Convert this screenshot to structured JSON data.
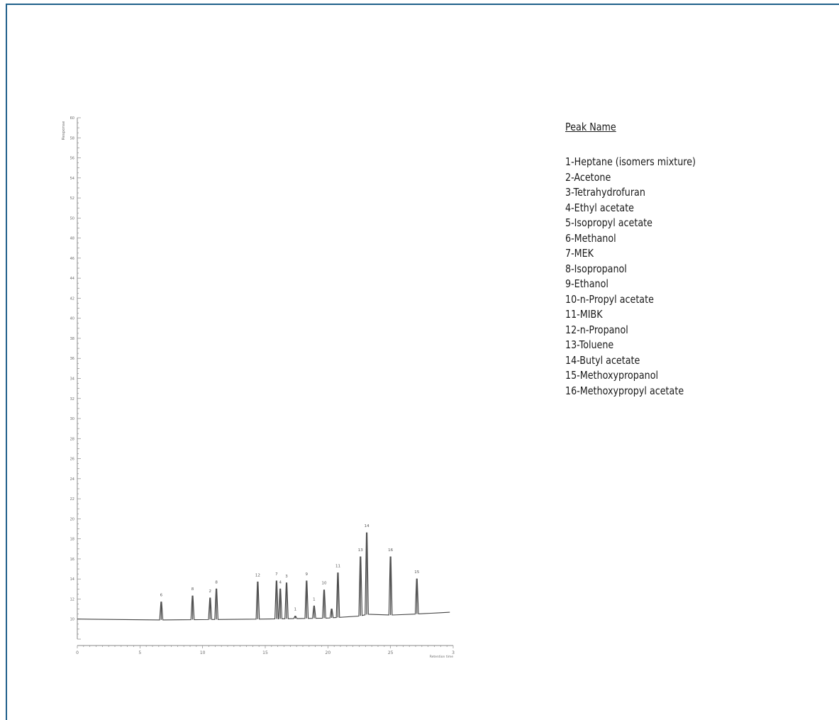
{
  "legend": {
    "title": "Peak Name",
    "items": [
      "1-Heptane (isomers mixture)",
      "2-Acetone",
      "3-Tetrahydrofuran",
      "4-Ethyl acetate",
      "5-Isopropyl acetate",
      "6-Methanol",
      "7-MEK",
      "8-Isopropanol",
      "9-Ethanol",
      "10-n-Propyl acetate",
      "11-MIBK",
      "12-n-Propanol",
      "13-Toluene",
      "14-Butyl acetate",
      "15-Methoxypropanol",
      "16-Methoxypropyl acetate"
    ]
  },
  "chart_data": {
    "type": "line",
    "title": "",
    "xlabel": "Retention time",
    "ylabel": "Response",
    "xlim": [
      0,
      30
    ],
    "ylim": [
      8,
      60
    ],
    "x_ticks": [
      "0",
      "5",
      "10",
      "15",
      "20",
      "25",
      "3"
    ],
    "y_ticks": [
      "10",
      "12",
      "14",
      "16",
      "18",
      "20",
      "22",
      "24",
      "26",
      "28",
      "30",
      "32",
      "34",
      "36",
      "38",
      "40",
      "42",
      "44",
      "46",
      "48",
      "50",
      "52",
      "54",
      "56",
      "58",
      "60"
    ],
    "grid": false,
    "baseline": [
      [
        0,
        10
      ],
      [
        5,
        9.9
      ],
      [
        10,
        9.95
      ],
      [
        15,
        10
      ],
      [
        20,
        10.1
      ],
      [
        22.5,
        10.3
      ],
      [
        23.3,
        10.5
      ],
      [
        25,
        10.4
      ],
      [
        27,
        10.5
      ],
      [
        30,
        10.7
      ]
    ],
    "peaks": [
      {
        "label": "6",
        "rt": 6.7,
        "height": 11.7
      },
      {
        "label": "8",
        "rt": 9.2,
        "height": 12.3
      },
      {
        "label": "2",
        "rt": 10.6,
        "height": 12.1
      },
      {
        "label": "8",
        "rt": 11.1,
        "height": 13.0
      },
      {
        "label": "12",
        "rt": 14.4,
        "height": 13.7
      },
      {
        "label": "7",
        "rt": 15.9,
        "height": 13.8
      },
      {
        "label": "4",
        "rt": 16.2,
        "height": 13.0
      },
      {
        "label": "3",
        "rt": 16.7,
        "height": 13.6
      },
      {
        "label": "1",
        "rt": 17.4,
        "height": 10.3
      },
      {
        "label": "9",
        "rt": 18.3,
        "height": 13.8
      },
      {
        "label": "1",
        "rt": 18.9,
        "height": 11.3
      },
      {
        "label": "10",
        "rt": 19.7,
        "height": 12.9
      },
      {
        "label": "",
        "rt": 20.3,
        "height": 11.0
      },
      {
        "label": "11",
        "rt": 20.8,
        "height": 14.6
      },
      {
        "label": "13",
        "rt": 22.6,
        "height": 16.2
      },
      {
        "label": "14",
        "rt": 23.1,
        "height": 18.6
      },
      {
        "label": "16",
        "rt": 25.0,
        "height": 16.2
      },
      {
        "label": "15",
        "rt": 27.1,
        "height": 14.0
      }
    ]
  }
}
